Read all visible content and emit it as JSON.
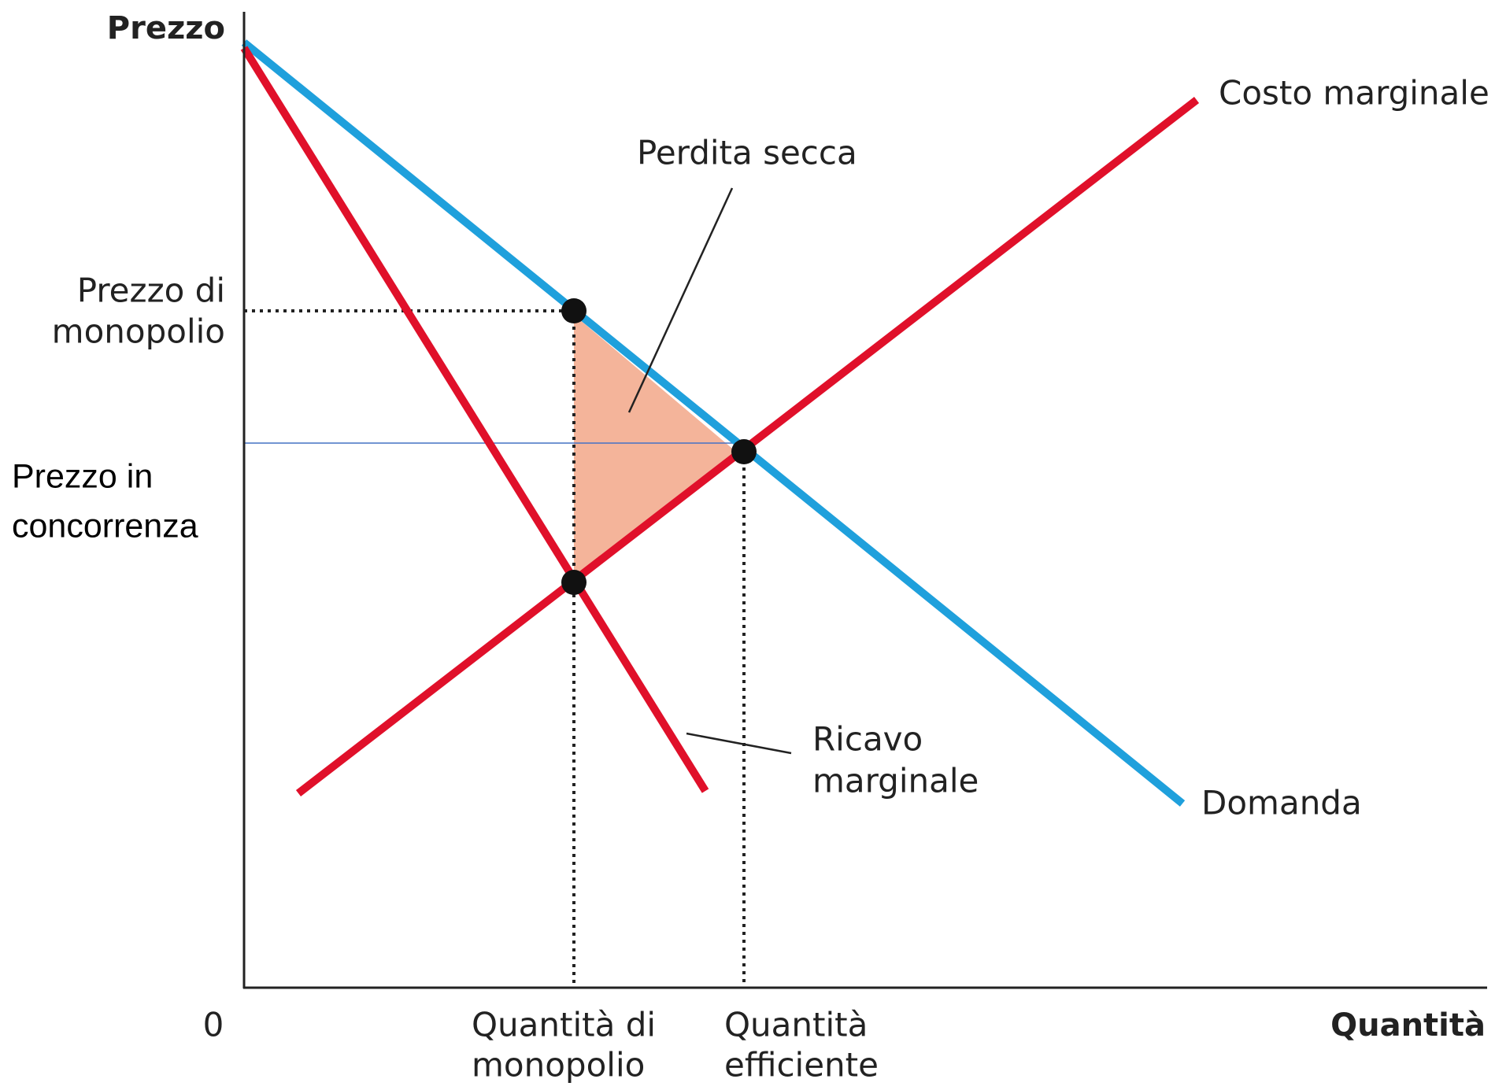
{
  "axes": {
    "y_label": "Prezzo",
    "x_label": "Quantità",
    "origin": "0"
  },
  "curves": {
    "marginal_cost": "Costo marginale",
    "demand": "Domanda",
    "marginal_revenue": [
      "Ricavo",
      "marginale"
    ]
  },
  "annotations": {
    "deadweight_loss": "Perdita secca",
    "monopoly_price": [
      "Prezzo di",
      "monopolio"
    ],
    "competitive_price": [
      "Prezzo in",
      "concorrenza"
    ],
    "monopoly_quantity": [
      "Quantità di",
      "monopolio"
    ],
    "efficient_quantity": [
      "Quantità",
      "efficiente"
    ]
  }
}
